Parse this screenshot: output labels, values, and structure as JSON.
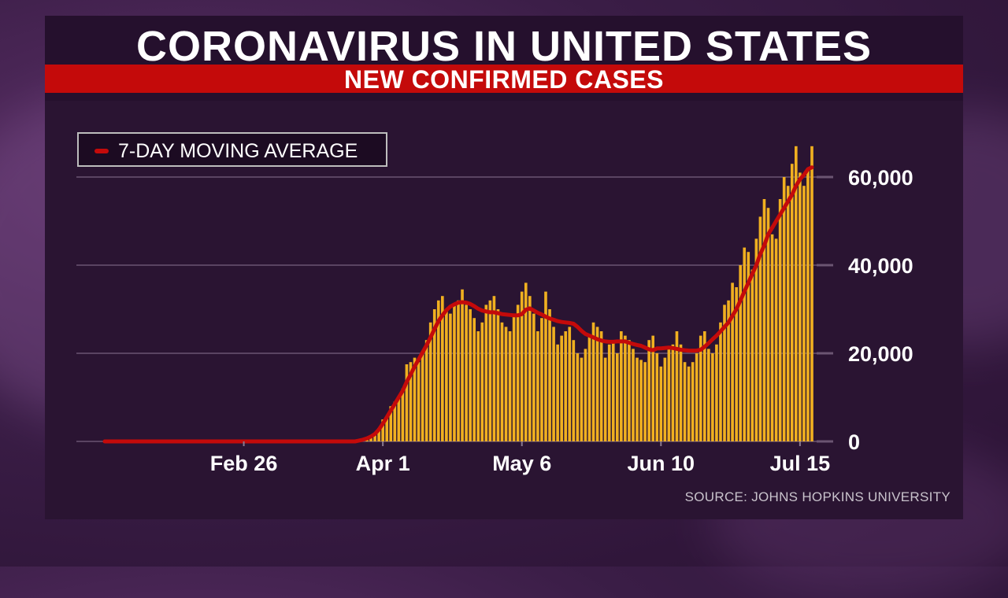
{
  "title": "CORONAVIRUS IN UNITED STATES",
  "subtitle": "NEW CONFIRMED CASES",
  "legend": {
    "label": "7-DAY MOVING AVERAGE"
  },
  "source": "SOURCE: JOHNS HOPKINS UNIVERSITY",
  "colors": {
    "bars": "#f0b020",
    "average_line": "#c40a0a",
    "title_bar": "#c40a0a",
    "gridline": "#6b5572"
  },
  "chart_data": {
    "type": "bar",
    "title": "CORONAVIRUS IN UNITED STATES",
    "subtitle": "NEW CONFIRMED CASES",
    "xlabel": "",
    "ylabel": "",
    "x_tick_labels": [
      "Feb 26",
      "Apr 1",
      "May 6",
      "Jun 10",
      "Jul 15"
    ],
    "y_tick_labels": [
      "0",
      "20,000",
      "40,000",
      "60,000"
    ],
    "y_ticks": [
      0,
      20000,
      40000,
      60000
    ],
    "ylim": [
      0,
      60000
    ],
    "y_axis_position": "right",
    "grid": true,
    "legend_position": "top-left",
    "daily_new_cases": [
      0,
      0,
      0,
      0,
      0,
      0,
      0,
      0,
      0,
      0,
      0,
      0,
      0,
      0,
      0,
      0,
      0,
      0,
      0,
      0,
      0,
      0,
      0,
      0,
      0,
      0,
      0,
      0,
      0,
      0,
      0,
      0,
      0,
      0,
      0,
      0,
      0,
      0,
      0,
      0,
      0,
      0,
      0,
      0,
      0,
      0,
      0,
      0,
      0,
      0,
      0,
      0,
      0,
      0,
      0,
      0,
      0,
      0,
      0,
      0,
      0,
      0,
      0,
      0,
      100,
      300,
      600,
      1000,
      1600,
      3000,
      5000,
      5500,
      8000,
      9000,
      10000,
      12000,
      17500,
      18000,
      19000,
      18000,
      20000,
      23000,
      27000,
      30000,
      32000,
      33000,
      30000,
      29000,
      31000,
      32000,
      34500,
      31000,
      30000,
      28000,
      25000,
      27000,
      31000,
      32000,
      33000,
      30000,
      27000,
      26000,
      25000,
      29000,
      31000,
      34000,
      36000,
      33000,
      29000,
      25000,
      28000,
      34000,
      30000,
      26000,
      22000,
      24000,
      25000,
      26000,
      23000,
      20000,
      19000,
      21000,
      24000,
      27000,
      26000,
      25000,
      19000,
      22000,
      23000,
      20000,
      25000,
      24000,
      23000,
      21000,
      19000,
      18500,
      18000,
      23000,
      24000,
      20000,
      17000,
      19000,
      21000,
      22000,
      25000,
      22000,
      18000,
      17000,
      18000,
      20000,
      24000,
      25000,
      21000,
      20000,
      22000,
      27000,
      31000,
      32000,
      36000,
      35000,
      40000,
      44000,
      43000,
      39000,
      46000,
      51000,
      55000,
      53000,
      47000,
      46000,
      55000,
      60000,
      58000,
      63000,
      67000,
      61000,
      58000,
      62000,
      67000
    ],
    "moving_average": [
      0,
      0,
      0,
      0,
      0,
      0,
      0,
      0,
      0,
      0,
      0,
      0,
      0,
      0,
      0,
      0,
      0,
      0,
      0,
      0,
      0,
      0,
      0,
      0,
      0,
      0,
      0,
      0,
      0,
      0,
      0,
      0,
      0,
      0,
      0,
      0,
      0,
      0,
      0,
      0,
      0,
      0,
      0,
      0,
      0,
      0,
      0,
      0,
      0,
      0,
      0,
      0,
      0,
      0,
      0,
      0,
      0,
      0,
      0,
      0,
      0,
      0,
      0,
      0,
      200,
      400,
      700,
      1100,
      1700,
      2700,
      4000,
      5500,
      7000,
      8500,
      10000,
      11500,
      13500,
      15200,
      17000,
      18600,
      20200,
      21800,
      23600,
      25500,
      27300,
      28600,
      29800,
      30600,
      31100,
      31500,
      31600,
      31500,
      31200,
      30700,
      30100,
      29700,
      29500,
      29300,
      29300,
      29100,
      28900,
      28800,
      28700,
      28600,
      28600,
      28900,
      29900,
      30200,
      29700,
      29200,
      28800,
      28300,
      27900,
      27600,
      27300,
      27100,
      27000,
      26900,
      26700,
      26000,
      25100,
      24400,
      24000,
      23600,
      23200,
      22900,
      22700,
      22600,
      22600,
      22700,
      22700,
      22700,
      22400,
      22100,
      21900,
      21700,
      21300,
      20900,
      20700,
      21100,
      21100,
      21200,
      21300,
      21200,
      21000,
      20800,
      20700,
      20600,
      20600,
      20600,
      20800,
      21500,
      22300,
      23200,
      24000,
      25000,
      26000,
      27000,
      28500,
      30000,
      32000,
      34000,
      36000,
      38000,
      40000,
      42500,
      44500,
      47000,
      48500,
      50000,
      51500,
      53000,
      54500,
      56000,
      58000,
      59500,
      60500,
      61800,
      62200
    ]
  }
}
